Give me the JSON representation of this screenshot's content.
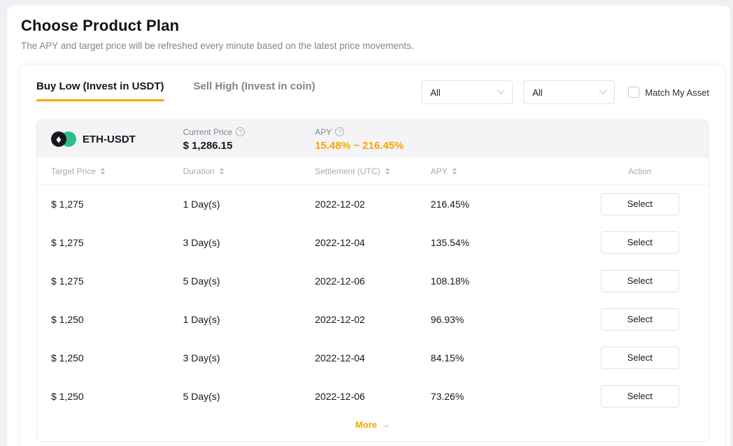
{
  "page": {
    "title": "Choose Product Plan",
    "subtitle": "The APY and target price will be refreshed every minute based on the latest price movements."
  },
  "tabs": [
    {
      "label": "Buy Low (Invest in USDT)",
      "active": true
    },
    {
      "label": "Sell High (Invest in coin)",
      "active": false
    }
  ],
  "filters": {
    "dropdown1": {
      "value": "All"
    },
    "dropdown2": {
      "value": "All"
    },
    "checkbox_label": "Match My Asset",
    "checkbox_checked": false
  },
  "pair": {
    "name": "ETH-USDT",
    "eth_symbol": "◆",
    "current_price_label": "Current Price",
    "current_price": "$ 1,286.15",
    "apy_label": "APY",
    "apy_range": "15.48% ~ 216.45%",
    "info_glyph": "?"
  },
  "table": {
    "columns": [
      "Target Price",
      "Duration",
      "Settlement (UTC)",
      "APY",
      "Action"
    ],
    "rows": [
      [
        "$ 1,275",
        "1 Day(s)",
        "2022-12-02",
        "216.45%",
        "Select"
      ],
      [
        "$ 1,275",
        "3 Day(s)",
        "2022-12-04",
        "135.54%",
        "Select"
      ],
      [
        "$ 1,275",
        "5 Day(s)",
        "2022-12-06",
        "108.18%",
        "Select"
      ],
      [
        "$ 1,250",
        "1 Day(s)",
        "2022-12-02",
        "96.93%",
        "Select"
      ],
      [
        "$ 1,250",
        "3 Day(s)",
        "2022-12-04",
        "84.15%",
        "Select"
      ],
      [
        "$ 1,250",
        "5 Day(s)",
        "2022-12-06",
        "73.26%",
        "Select"
      ]
    ],
    "more_label": "More",
    "more_arrow": "→"
  },
  "colors": {
    "accent": "#f7a600",
    "eth_icon_bg": "#17181e",
    "usdt_icon_bg": "#2ebd85",
    "title_text": "#111214",
    "muted_text": "#81858c"
  }
}
